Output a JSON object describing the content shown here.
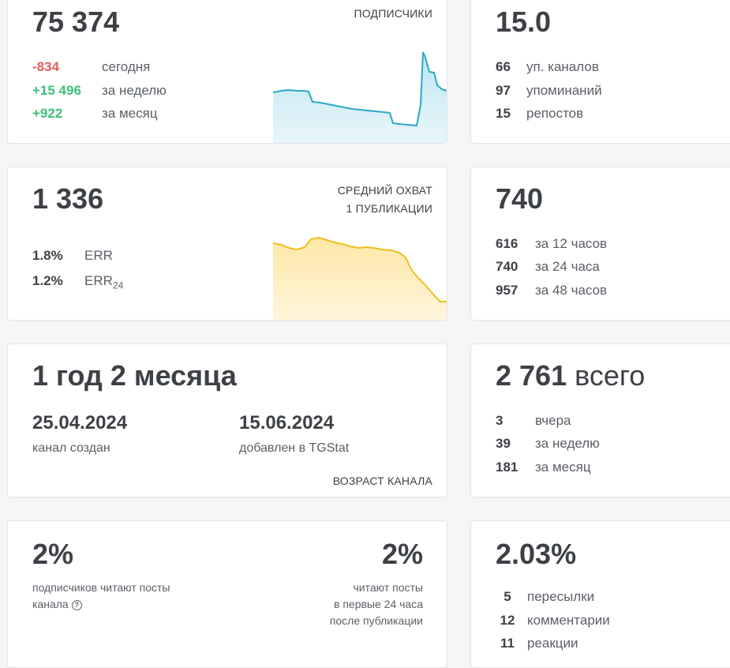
{
  "subscribers": {
    "value": "75 374",
    "caption": "ПОДПИСЧИКИ",
    "rows": [
      {
        "value": "-834",
        "label": "сегодня"
      },
      {
        "value": "+15 496",
        "label": "за неделю"
      },
      {
        "value": "+922",
        "label": "за месяц"
      }
    ],
    "colors": {
      "negative": "#e05f5f",
      "positive": "#3cc07b",
      "line": "#29a8c4"
    }
  },
  "citation": {
    "value": "15.0",
    "rows": [
      {
        "value": "66",
        "label": "уп. каналов"
      },
      {
        "value": "97",
        "label": "упоминаний"
      },
      {
        "value": "15",
        "label": "репостов"
      }
    ]
  },
  "reach": {
    "value": "1 336",
    "caption_line1": "СРЕДНИЙ ОХВАТ",
    "caption_line2": "1 ПУБЛИКАЦИИ",
    "rows": [
      {
        "value": "1.8%",
        "label": "ERR",
        "label_sub": ""
      },
      {
        "value": "1.2%",
        "label": "ERR",
        "label_sub": "24"
      }
    ],
    "colors": {
      "line": "#f2bd1d"
    }
  },
  "views": {
    "value": "740",
    "rows": [
      {
        "value": "616",
        "label": "за 12 часов"
      },
      {
        "value": "740",
        "label": "за 24 часа"
      },
      {
        "value": "957",
        "label": "за 48 часов"
      }
    ]
  },
  "age": {
    "value": "1 год 2 месяца",
    "created_date": "25.04.2024",
    "created_label": "канал создан",
    "added_date": "15.06.2024",
    "added_label": "добавлен в TGStat",
    "caption": "ВОЗРАСТ КАНАЛА"
  },
  "posts": {
    "value": "2 761",
    "value_unit": "всего",
    "rows": [
      {
        "value": "3",
        "label": "вчера"
      },
      {
        "value": "39",
        "label": "за неделю"
      },
      {
        "value": "181",
        "label": "за месяц"
      }
    ]
  },
  "readers": {
    "left_value": "2%",
    "left_line1": "подписчиков читают посты",
    "left_line2": "канала",
    "help_icon": "?",
    "right_value": "2%",
    "right_line1": "читают посты",
    "right_line2": "в первые 24 часа",
    "right_line3": "после публикации"
  },
  "engagement": {
    "value": "2.03%",
    "rows": [
      {
        "value": "5",
        "label": "пересылки"
      },
      {
        "value": "12",
        "label": "комментарии"
      },
      {
        "value": "11",
        "label": "реакции"
      }
    ]
  }
}
